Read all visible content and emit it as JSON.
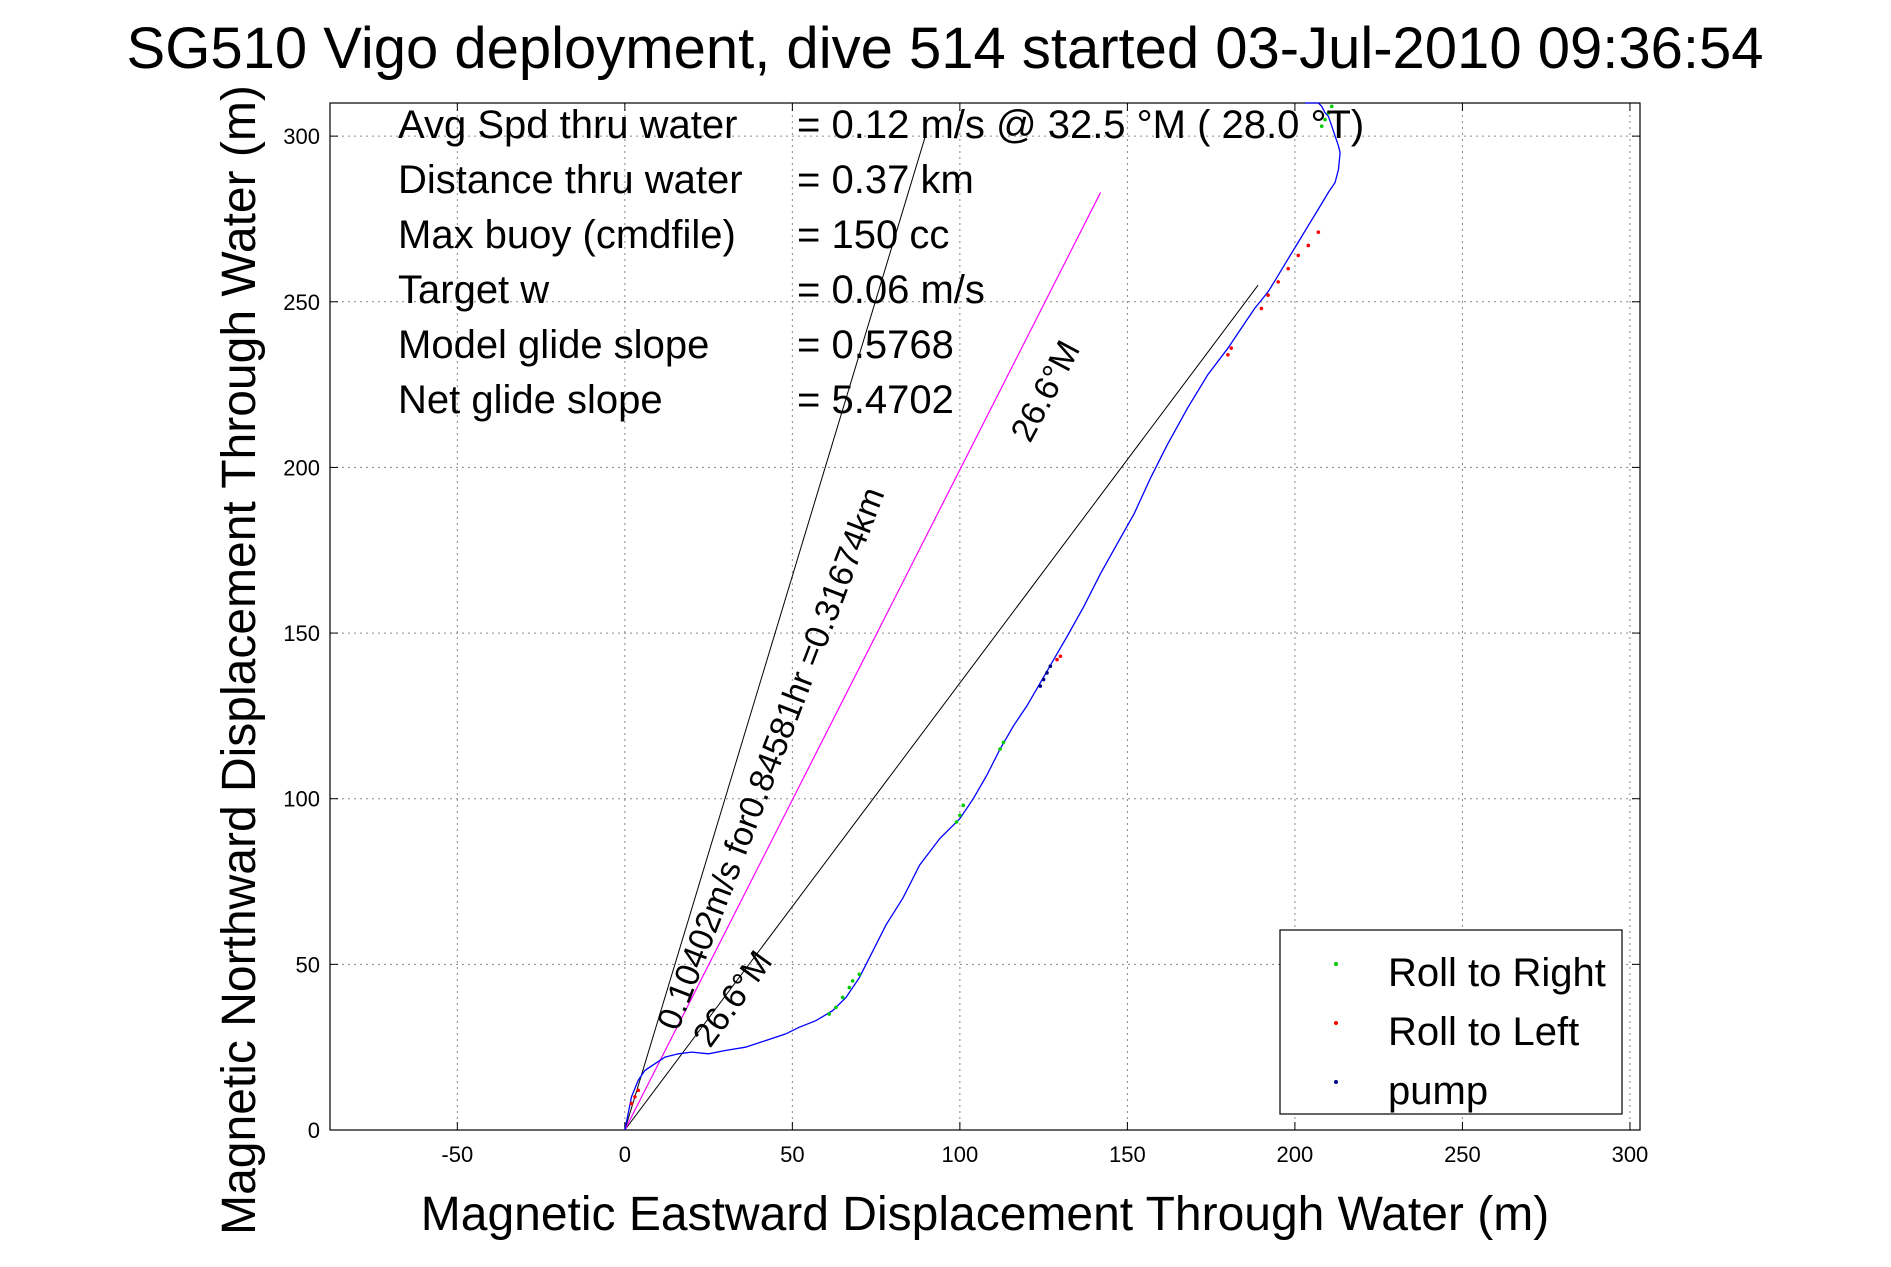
{
  "chart_data": {
    "type": "line",
    "title": "SG510 Vigo deployment, dive 514 started 03-Jul-2010 09:36:54",
    "xlabel": "Magnetic Eastward Displacement Through Water (m)",
    "ylabel": "Magnetic Northward Displacement Through Water (m)",
    "xlim": [
      -88,
      303
    ],
    "ylim": [
      0,
      310
    ],
    "xticks": [
      -50,
      0,
      50,
      100,
      150,
      200,
      250,
      300
    ],
    "yticks": [
      0,
      50,
      100,
      150,
      200,
      250,
      300
    ],
    "xtick_labels": [
      "-50",
      "0",
      "50",
      "100",
      "150",
      "200",
      "250",
      "300"
    ],
    "ytick_labels": [
      "0",
      "50",
      "100",
      "150",
      "200",
      "250",
      "300"
    ],
    "grid": true,
    "legend_position": "bottom-right",
    "colors": {
      "track": "#0000ff",
      "roll_right": "#00cc00",
      "roll_left": "#ff0000",
      "pump": "#000080",
      "reference_lines": "#000000",
      "current_line": "#ff00ff"
    },
    "annotations": [
      {
        "label": "Avg Spd thru water",
        "value": "=  0.12 m/s @  32.5 °M ( 28.0 °T)"
      },
      {
        "label": "Distance thru water",
        "value": "=  0.37 km"
      },
      {
        "label": "Max buoy (cmdfile)",
        "value": "= 150 cc"
      },
      {
        "label": "Target w",
        "value": "= 0.06 m/s"
      },
      {
        "label": "Model glide slope",
        "value": "= 0.5768"
      },
      {
        "label": "Net glide slope",
        "value": "= 5.4702"
      }
    ],
    "rotated_labels": {
      "current": "0.10402m/s for0.84581hr =0.31674km",
      "heading_upper": "26.6°M",
      "heading_lower": "26.6°M"
    },
    "legend": [
      "Roll to Right",
      "Roll to Left",
      "pump"
    ],
    "reference_lines": [
      {
        "name": "steep",
        "points": [
          [
            0,
            0
          ],
          [
            90,
            301
          ]
        ]
      },
      {
        "name": "shallow",
        "points": [
          [
            0,
            0
          ],
          [
            189,
            255
          ]
        ]
      }
    ],
    "current_line": {
      "points": [
        [
          0,
          0
        ],
        [
          142,
          283
        ]
      ]
    },
    "series": [
      {
        "name": "track",
        "x": [
          0,
          1,
          2,
          4,
          6,
          9,
          12,
          16,
          20,
          25,
          30,
          36,
          42,
          48,
          52,
          57,
          62,
          66,
          70,
          74,
          78,
          83,
          88,
          94,
          100,
          104,
          108,
          112,
          116,
          120,
          124,
          128,
          132,
          137,
          142,
          147,
          152,
          157,
          162,
          168,
          174,
          180,
          184,
          188,
          192,
          195,
          198,
          201,
          204,
          207,
          210,
          212,
          213,
          213.5,
          213,
          212,
          211,
          210,
          209,
          208,
          207,
          206,
          205,
          204,
          203
        ],
        "y": [
          0,
          5,
          10,
          15,
          18,
          20,
          22,
          23,
          23.5,
          23,
          24,
          25,
          27,
          29,
          31,
          33,
          36,
          40,
          46,
          54,
          62,
          70,
          80,
          88,
          94,
          100,
          107,
          115,
          122,
          128,
          135,
          142,
          149,
          158,
          168,
          177,
          186,
          197,
          207,
          218,
          228,
          236,
          242,
          248,
          253,
          258,
          263,
          268,
          273,
          278,
          283,
          286,
          290,
          295,
          297,
          300,
          303,
          306,
          307,
          309,
          310,
          310,
          310,
          310,
          310
        ]
      },
      {
        "name": "Roll to Right",
        "x": [
          61,
          63,
          65,
          67,
          68,
          70,
          99,
          100,
          101,
          112,
          113,
          208,
          209,
          210,
          211
        ],
        "y": [
          35,
          37,
          40,
          43,
          45,
          47,
          93,
          95,
          98,
          115,
          117,
          303,
          305,
          307,
          309
        ]
      },
      {
        "name": "Roll to Left",
        "x": [
          2,
          3,
          4,
          180,
          181,
          190,
          192,
          195,
          198,
          201,
          204,
          207,
          129,
          130
        ],
        "y": [
          8,
          10,
          12,
          234,
          236,
          248,
          252,
          256,
          260,
          264,
          267,
          271,
          142,
          143
        ]
      },
      {
        "name": "pump",
        "x": [
          124,
          125,
          126,
          127
        ],
        "y": [
          134,
          136,
          138,
          140
        ]
      }
    ]
  }
}
